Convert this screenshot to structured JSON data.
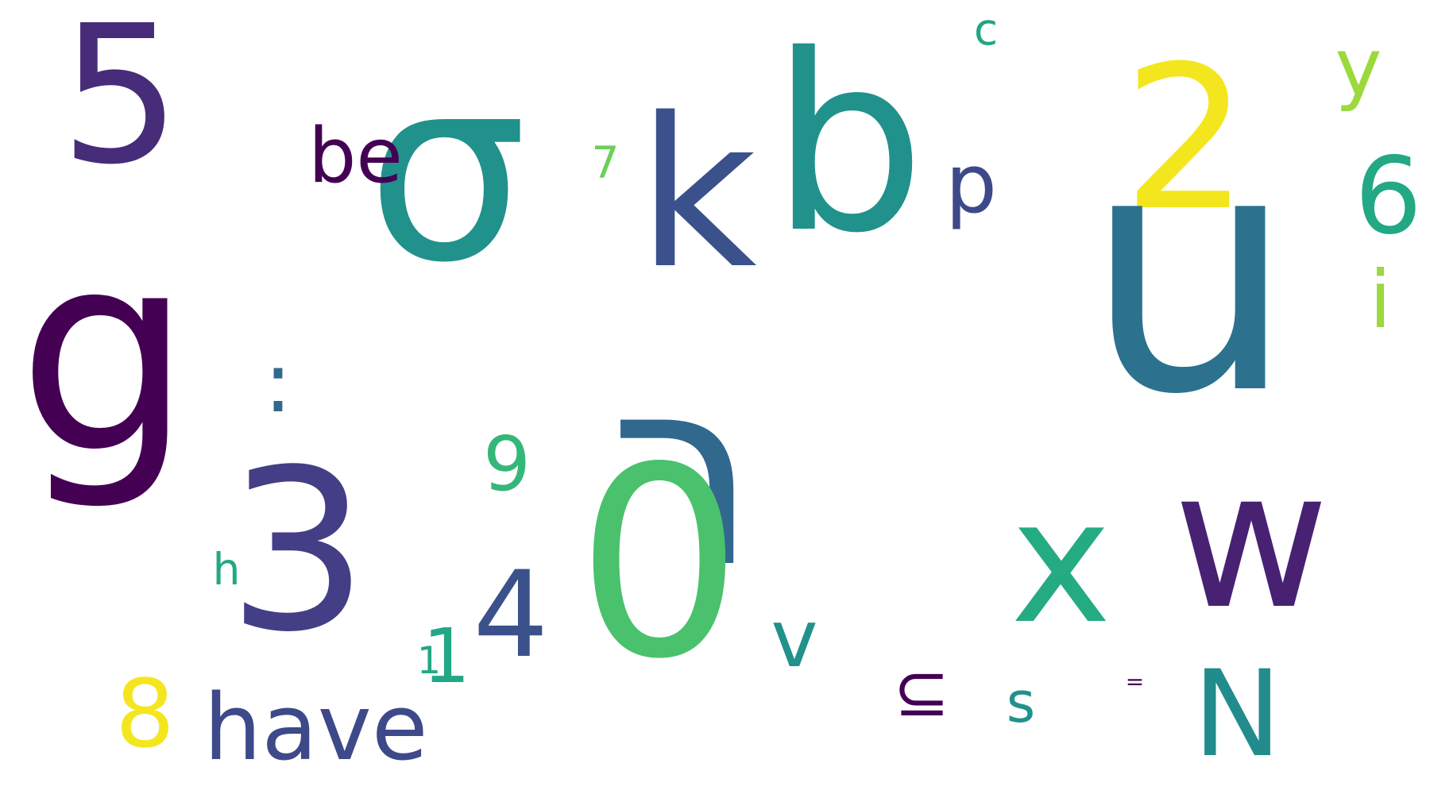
{
  "words": [
    {
      "text": "g",
      "color": "#440154"
    },
    {
      "text": "5",
      "color": "#472c7a"
    },
    {
      "text": "σ",
      "color": "#21918c"
    },
    {
      "text": "be",
      "color": "#440154"
    },
    {
      "text": "7",
      "color": "#6ece58"
    },
    {
      "text": "k",
      "color": "#3b518b"
    },
    {
      "text": "b",
      "color": "#21918c"
    },
    {
      "text": "c",
      "color": "#21a685"
    },
    {
      "text": "p",
      "color": "#3e4989"
    },
    {
      "text": "2",
      "color": "#f4e61e"
    },
    {
      "text": "u",
      "color": "#2c728e"
    },
    {
      "text": "y",
      "color": "#9bd93c"
    },
    {
      "text": "6",
      "color": "#22a884"
    },
    {
      "text": "i",
      "color": "#9bd93c"
    },
    {
      "text": ":",
      "color": "#31688e"
    },
    {
      "text": "ר",
      "color": "#31688e"
    },
    {
      "text": "9",
      "color": "#35b779"
    },
    {
      "text": "0",
      "color": "#4ac16d"
    },
    {
      "text": "3",
      "color": "#433e85"
    },
    {
      "text": "h",
      "color": "#22a884"
    },
    {
      "text": "1",
      "color": "#22a884"
    },
    {
      "text": "1",
      "color": "#22a884"
    },
    {
      "text": "4",
      "color": "#3b518b"
    },
    {
      "text": "v",
      "color": "#21918c"
    },
    {
      "text": "x",
      "color": "#25ab82"
    },
    {
      "text": "w",
      "color": "#482173"
    },
    {
      "text": "⊆",
      "color": "#440154"
    },
    {
      "text": "s",
      "color": "#21918c"
    },
    {
      "text": "=",
      "color": "#440154"
    },
    {
      "text": "N",
      "color": "#228c8d"
    },
    {
      "text": "8",
      "color": "#f4e61e"
    },
    {
      "text": "have",
      "color": "#3e4989"
    }
  ]
}
